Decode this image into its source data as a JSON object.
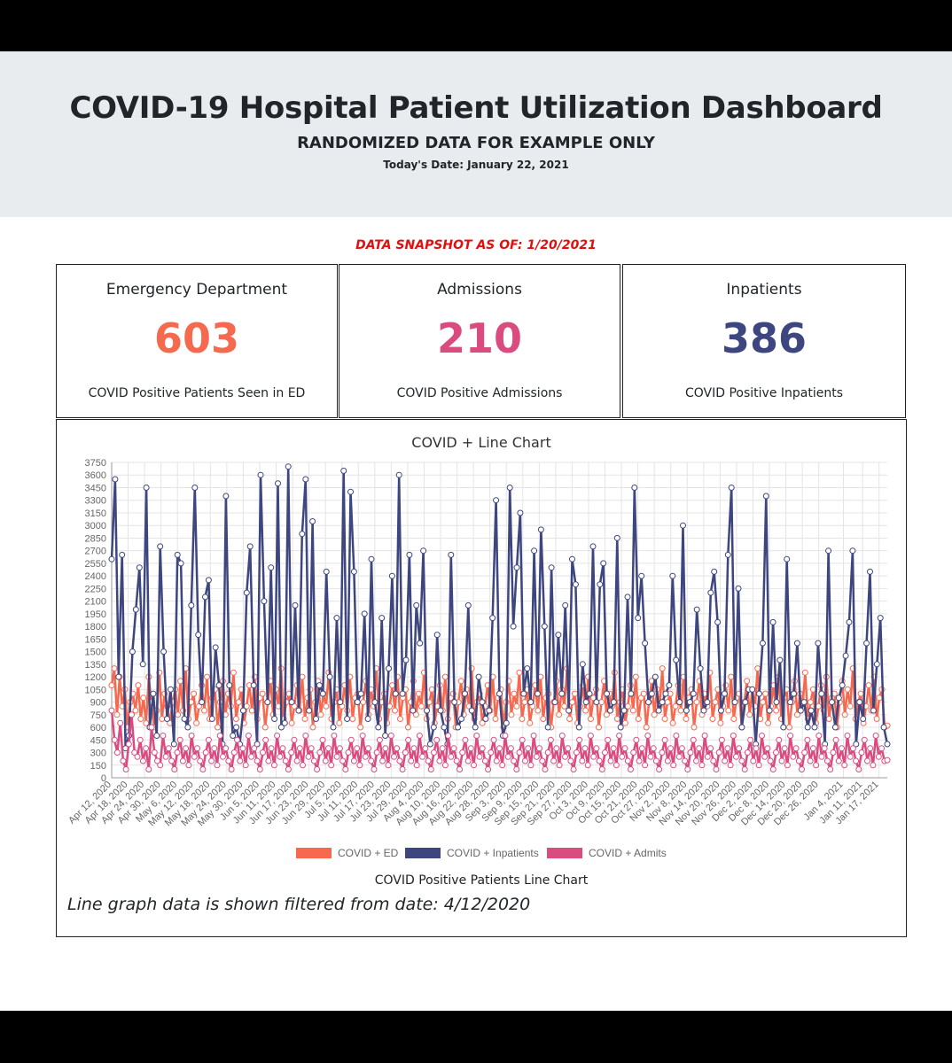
{
  "header": {
    "title": "COVID-19 Hospital Patient Utilization Dashboard",
    "subtitle": "RANDOMIZED DATA FOR EXAMPLE ONLY",
    "today": "Today's Date: January 22, 2021"
  },
  "snapshot": "DATA SNAPSHOT AS OF: 1/20/2021",
  "cards": {
    "ed": {
      "title": "Emergency Department",
      "value": "603",
      "subtitle": "COVID Positive Patients Seen in ED",
      "color": "#f7694f"
    },
    "admissions": {
      "title": "Admissions",
      "value": "210",
      "subtitle": "COVID Positive Admissions",
      "color": "#da4c80"
    },
    "inpatients": {
      "title": "Inpatients",
      "value": "386",
      "subtitle": "COVID Positive Inpatients",
      "color": "#3e4680"
    }
  },
  "chart_data": {
    "type": "line",
    "title": "COVID + Line Chart",
    "xlabel": "COVID Positive Patients Line Chart",
    "ylabel": "",
    "ylim": [
      0,
      3750
    ],
    "yticks": [
      0,
      150,
      300,
      450,
      600,
      750,
      900,
      1050,
      1200,
      1350,
      1500,
      1650,
      1800,
      1950,
      2100,
      2250,
      2400,
      2550,
      2700,
      2850,
      3000,
      3150,
      3300,
      3450,
      3600,
      3750
    ],
    "x_start": "2020-04-12",
    "x_end": "2021-01-20",
    "xtick_labels": [
      "Apr 12, 2020",
      "Apr 18, 2020",
      "Apr 24, 2020",
      "Apr 30, 2020",
      "May 6, 2020",
      "May 12, 2020",
      "May 18, 2020",
      "May 24, 2020",
      "May 30, 2020",
      "Jun 5, 2020",
      "Jun 11, 2020",
      "Jun 17, 2020",
      "Jun 23, 2020",
      "Jun 29, 2020",
      "Jul 5, 2020",
      "Jul 11, 2020",
      "Jul 17, 2020",
      "Jul 23, 2020",
      "Jul 29, 2020",
      "Aug 4, 2020",
      "Aug 10, 2020",
      "Aug 16, 2020",
      "Aug 22, 2020",
      "Aug 28, 2020",
      "Sep 3, 2020",
      "Sep 9, 2020",
      "Sep 15, 2020",
      "Sep 21, 2020",
      "Sep 27, 2020",
      "Oct 3, 2020",
      "Oct 9, 2020",
      "Oct 15, 2020",
      "Oct 21, 2020",
      "Oct 27, 2020",
      "Nov 2, 2020",
      "Nov 8, 2020",
      "Nov 14, 2020",
      "Nov 20, 2020",
      "Nov 26, 2020",
      "Dec 2, 2020",
      "Dec 8, 2020",
      "Dec 14, 2020",
      "Dec 20, 2020",
      "Dec 26, 2020",
      "Jan 4, 2021",
      "Jan 11, 2021",
      "Jan 17, 2021"
    ],
    "legend_position": "bottom",
    "grid": true,
    "series": [
      {
        "name": "COVID + ED",
        "color": "#f7694f",
        "values": [
          1100,
          1300,
          750,
          1200,
          850,
          1050,
          600,
          900,
          1000,
          800,
          1100,
          700,
          950,
          650,
          1200,
          900,
          600,
          800,
          1250,
          700,
          1000,
          850,
          650,
          900,
          1050,
          750,
          1150,
          800,
          1300,
          700,
          900,
          1000,
          650,
          850,
          1100,
          800,
          1200,
          700,
          950,
          1050,
          600,
          900,
          1150,
          750,
          1000,
          850,
          1250,
          700,
          900,
          1050,
          650,
          850,
          1100,
          800,
          1200,
          700,
          950,
          1000,
          600,
          900,
          1150,
          750,
          1050,
          850,
          1300,
          700,
          900,
          1000,
          650,
          850,
          1100,
          800,
          1200,
          700,
          950,
          1050,
          600,
          900,
          1150,
          750,
          1000,
          850,
          1250,
          700,
          900,
          1050,
          650,
          850,
          1100,
          800,
          1200,
          700,
          950,
          1000,
          600,
          900,
          1150,
          750,
          1050,
          850,
          1300,
          700,
          900,
          1000,
          650,
          850,
          1100,
          800,
          1200,
          700,
          950,
          1050,
          600,
          900,
          1150,
          750,
          1000,
          850,
          1250,
          700,
          900,
          1050,
          650,
          850,
          1100,
          800,
          1200,
          700,
          950,
          1000,
          600,
          900,
          1150,
          750,
          1050,
          850,
          1300,
          700,
          900,
          1000,
          650,
          850,
          1100,
          800,
          1200,
          700,
          950,
          1050,
          600,
          900,
          1150,
          750,
          1000,
          850,
          1250,
          700,
          900,
          1050,
          650,
          850,
          1100,
          800,
          1200,
          700,
          950,
          1000,
          600,
          900,
          1150,
          750,
          1050,
          850,
          1300,
          700,
          900,
          1000,
          650,
          850,
          1100,
          800,
          1200,
          700,
          950,
          1050,
          600,
          900,
          1150,
          750,
          1000,
          850,
          1250,
          700,
          900,
          1050,
          650,
          850,
          1100,
          800,
          1200,
          700,
          950,
          1000,
          600,
          900,
          1150,
          750,
          1050,
          850,
          1300,
          700,
          900,
          1000,
          650,
          850,
          1100,
          800,
          1200,
          700,
          950,
          1050,
          600,
          900,
          1150,
          750,
          1000,
          850,
          1250,
          700,
          900,
          1050,
          650,
          850,
          1100,
          800,
          1200,
          700,
          950,
          1000,
          600,
          900,
          1150,
          750,
          1050,
          850,
          1300,
          700,
          900,
          1000,
          650,
          850,
          1100,
          800,
          1200,
          700,
          950,
          1050,
          600,
          900,
          1150,
          750,
          1000,
          850,
          1250,
          700,
          900,
          1050,
          650,
          850,
          1100,
          800,
          1200,
          700,
          950,
          1000,
          600,
          900,
          1150,
          750,
          1050,
          850,
          1300,
          700,
          900,
          1000,
          650,
          850,
          1100,
          800,
          1200,
          700,
          950,
          1050,
          600,
          620
        ]
      },
      {
        "name": "COVID + Inpatients",
        "color": "#3e4680",
        "values": [
          2600,
          3550,
          1200,
          2650,
          350,
          500,
          1500,
          2000,
          2500,
          1350,
          3450,
          600,
          1000,
          500,
          2750,
          1500,
          700,
          1050,
          400,
          2650,
          2550,
          700,
          600,
          2050,
          3450,
          1700,
          900,
          2150,
          2350,
          700,
          1550,
          1100,
          400,
          3350,
          1100,
          500,
          600,
          400,
          800,
          2200,
          2750,
          1100,
          400,
          3600,
          2100,
          900,
          2500,
          700,
          3500,
          600,
          650,
          3700,
          900,
          2050,
          800,
          2900,
          3550,
          800,
          3050,
          700,
          1100,
          1000,
          2450,
          1200,
          600,
          1900,
          900,
          3650,
          700,
          3400,
          2450,
          900,
          1000,
          1950,
          700,
          2600,
          900,
          600,
          1900,
          500,
          1300,
          2400,
          1000,
          3600,
          1000,
          1400,
          2650,
          800,
          2050,
          1600,
          2700,
          800,
          400,
          600,
          1700,
          800,
          600,
          400,
          2650,
          900,
          600,
          700,
          1000,
          2050,
          800,
          600,
          1200,
          900,
          700,
          800,
          1900,
          3300,
          1000,
          500,
          650,
          3450,
          1800,
          2500,
          3150,
          1000,
          1300,
          900,
          2700,
          1000,
          2950,
          1800,
          600,
          2500,
          900,
          1700,
          1000,
          2050,
          800,
          2600,
          2300,
          600,
          1350,
          900,
          1000,
          2750,
          900,
          2300,
          2550,
          1000,
          800,
          900,
          2850,
          600,
          800,
          2150,
          1000,
          3450,
          1900,
          2400,
          1600,
          900,
          1000,
          1200,
          800,
          900,
          1000,
          1100,
          2400,
          1400,
          900,
          3000,
          800,
          900,
          1000,
          2000,
          1300,
          800,
          900,
          2200,
          2450,
          1850,
          800,
          1000,
          2650,
          3450,
          900,
          2250,
          600,
          900,
          1050,
          1050,
          400,
          1000,
          1600,
          3350,
          800,
          1850,
          900,
          1400,
          600,
          2600,
          900,
          1000,
          1600,
          800,
          900,
          600,
          800,
          600,
          1600,
          1000,
          400,
          2700,
          900,
          600,
          950,
          1100,
          1450,
          1850,
          2700,
          400,
          900,
          700,
          1600,
          2450,
          800,
          1350,
          1900,
          600,
          400
        ]
      },
      {
        "name": "COVID + Admits",
        "color": "#da4c80",
        "values": [
          800,
          450,
          300,
          650,
          200,
          100,
          400,
          750,
          300,
          250,
          450,
          200,
          350,
          100,
          600,
          300,
          200,
          150,
          500,
          250,
          350,
          200,
          100,
          300,
          450,
          200,
          350,
          150,
          500,
          250,
          350,
          200,
          100,
          300,
          450,
          200,
          350,
          150,
          500,
          250,
          350,
          200,
          100,
          300,
          450,
          200,
          350,
          150,
          500,
          250,
          350,
          200,
          100,
          300,
          450,
          200,
          350,
          150,
          500,
          250,
          350,
          200,
          100,
          300,
          450,
          200,
          350,
          150,
          500,
          250,
          350,
          200,
          100,
          300,
          450,
          200,
          350,
          150,
          500,
          250,
          350,
          200,
          100,
          300,
          450,
          200,
          350,
          150,
          500,
          250,
          350,
          200,
          100,
          300,
          450,
          200,
          350,
          150,
          500,
          250,
          350,
          200,
          100,
          300,
          450,
          200,
          350,
          150,
          500,
          250,
          350,
          200,
          100,
          300,
          450,
          200,
          350,
          150,
          500,
          250,
          350,
          200,
          100,
          300,
          450,
          200,
          350,
          150,
          500,
          250,
          350,
          200,
          100,
          300,
          450,
          200,
          350,
          150,
          500,
          250,
          350,
          200,
          100,
          300,
          450,
          200,
          350,
          150,
          500,
          250,
          350,
          200,
          100,
          300,
          450,
          200,
          350,
          150,
          500,
          250,
          350,
          200,
          100,
          300,
          450,
          200,
          350,
          150,
          500,
          250,
          350,
          200,
          100,
          300,
          450,
          200,
          350,
          150,
          500,
          250,
          350,
          200,
          100,
          300,
          450,
          200,
          350,
          150,
          500,
          250,
          350,
          200,
          100,
          300,
          450,
          200,
          350,
          150,
          500,
          250,
          350,
          200,
          100,
          300,
          450,
          200,
          350,
          150,
          500,
          250,
          350,
          200,
          100,
          300,
          450,
          200,
          350,
          150,
          500,
          250,
          350,
          200,
          100,
          300,
          450,
          200,
          350,
          150,
          500,
          250,
          350,
          200,
          100,
          300,
          450,
          200,
          350,
          150,
          500,
          250,
          350,
          200,
          100,
          300,
          450,
          200,
          350,
          150,
          500,
          250,
          350,
          200,
          100,
          300,
          450,
          200,
          350,
          150,
          500,
          250,
          350,
          200,
          100,
          300,
          450,
          200,
          350,
          150,
          500,
          250,
          350,
          200,
          210
        ]
      }
    ]
  },
  "footnote": "Line graph data is shown filtered from date: 4/12/2020"
}
